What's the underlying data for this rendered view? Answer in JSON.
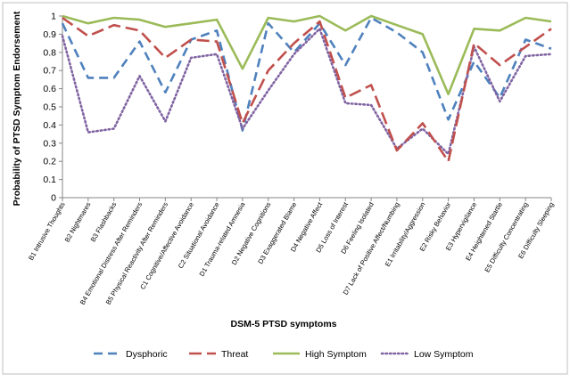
{
  "chart_data": {
    "type": "line",
    "title": "",
    "xlabel": "DSM-5 PTSD symptoms",
    "ylabel": "Probability of PTSD Symptom Endorsement",
    "ylim": [
      0,
      1
    ],
    "yticks": [
      "0",
      "0.1",
      "0.2",
      "0.3",
      "0.4",
      "0.5",
      "0.6",
      "0.7",
      "0.8",
      "0.9",
      "1"
    ],
    "grid": false,
    "legend_position": "bottom",
    "categories": [
      "B1 Intrusive Thoughts",
      "B2 Nightmares",
      "B3 Flashbacks",
      "B4 Emotional Distress After Reminders",
      "B5 Physical Reactivity After Reminders",
      "C1 Cognitive/Affective Avoidance",
      "C2 Situational Avoidance",
      "D1 Trauma-related Amnesia",
      "D2 Negative Cognitions",
      "D3 Exaggerated Blame",
      "D4 Negative Affect",
      "D5 Loss of Interest",
      "D6 Feeling Isolated",
      "D7 Lack of Positive Affect/Numbing",
      "E1 Irritability/Aggression",
      "E2 Risky Behavior",
      "E3 Hypervigilance",
      "E4 Heightened Startle",
      "E5 Difficulty Concentrating",
      "E6 Difficulty Sleeping"
    ],
    "series": [
      {
        "name": "Dysphoric",
        "color": "#4f81bd",
        "dash": "long",
        "values": [
          0.96,
          0.66,
          0.66,
          0.86,
          0.58,
          0.87,
          0.92,
          0.37,
          0.96,
          0.8,
          0.96,
          0.73,
          0.99,
          0.91,
          0.8,
          0.43,
          0.75,
          0.55,
          0.87,
          0.82
        ]
      },
      {
        "name": "Threat",
        "color": "#c0504d",
        "dash": "dash",
        "values": [
          0.99,
          0.89,
          0.95,
          0.92,
          0.77,
          0.87,
          0.86,
          0.41,
          0.7,
          0.85,
          0.97,
          0.55,
          0.62,
          0.26,
          0.41,
          0.2,
          0.85,
          0.73,
          0.83,
          0.93
        ]
      },
      {
        "name": "High Symptom",
        "color": "#9bbb59",
        "dash": "solid",
        "values": [
          1.0,
          0.96,
          0.99,
          0.98,
          0.94,
          0.96,
          0.98,
          0.71,
          0.99,
          0.97,
          1.0,
          0.92,
          1.0,
          0.95,
          0.9,
          0.57,
          0.93,
          0.92,
          0.99,
          0.97
        ]
      },
      {
        "name": "Low Symptom",
        "color": "#8064a2",
        "dash": "dot",
        "values": [
          0.89,
          0.36,
          0.38,
          0.67,
          0.42,
          0.77,
          0.79,
          0.38,
          0.59,
          0.79,
          0.93,
          0.52,
          0.51,
          0.27,
          0.38,
          0.24,
          0.83,
          0.53,
          0.78,
          0.79
        ]
      }
    ]
  }
}
